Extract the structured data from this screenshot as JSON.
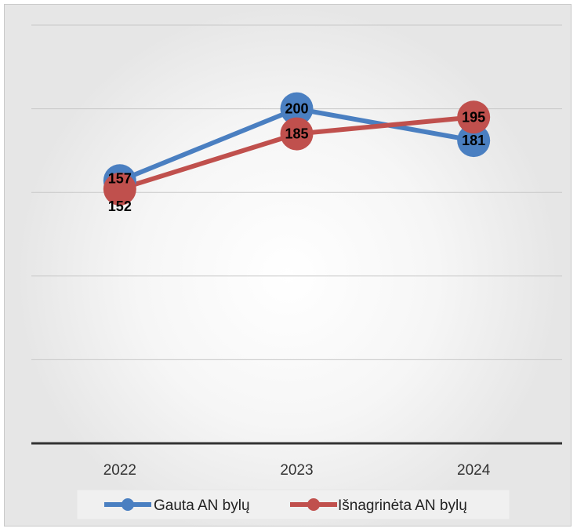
{
  "chart_data": {
    "type": "line",
    "categories": [
      "2022",
      "2023",
      "2024"
    ],
    "series": [
      {
        "name": "Gauta AN bylų",
        "values": [
          157,
          200,
          181
        ],
        "color": "#4a7fc1"
      },
      {
        "name": "Išnagrinėta AN bylų",
        "values": [
          152,
          185,
          195
        ],
        "color": "#c0504d"
      }
    ],
    "ylim": [
      0,
      250
    ],
    "grid": true,
    "show_y_tick_labels": false,
    "legend_position": "bottom",
    "title": "",
    "xlabel": "",
    "ylabel": ""
  }
}
